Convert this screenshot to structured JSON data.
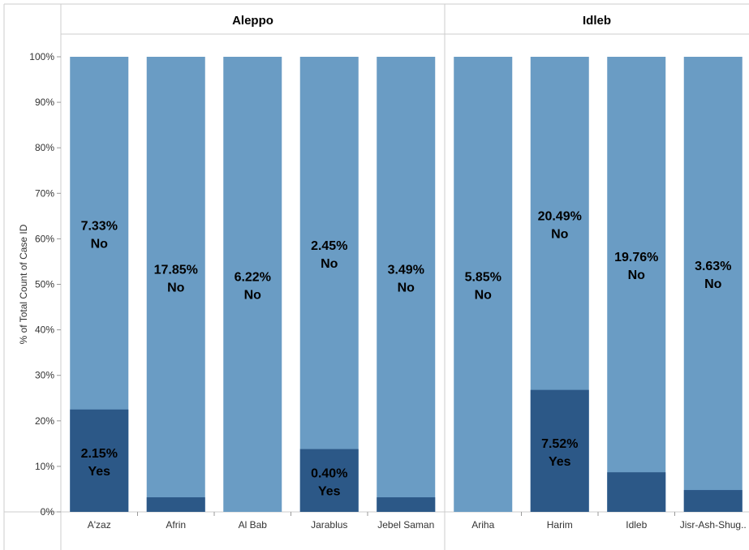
{
  "chart_data": {
    "type": "bar",
    "stacked": true,
    "ylabel": "% of Total Count of Case ID",
    "ylim": [
      0,
      100
    ],
    "yticks": [
      "0%",
      "10%",
      "20%",
      "30%",
      "40%",
      "50%",
      "60%",
      "70%",
      "80%",
      "90%",
      "100%"
    ],
    "colors": {
      "Yes": "#2c5887",
      "No": "#6a9cc4"
    },
    "panes": [
      {
        "title": "Aleppo",
        "bars": [
          {
            "category": "A'zaz",
            "yes_pct": 22.5,
            "yes_label": "2.15%",
            "yes_text": "Yes",
            "no_label": "7.33%",
            "no_text": "No"
          },
          {
            "category": "Afrin",
            "yes_pct": 3.2,
            "yes_label": "",
            "yes_text": "",
            "no_label": "17.85%",
            "no_text": "No"
          },
          {
            "category": "Al Bab",
            "yes_pct": 0,
            "yes_label": "",
            "yes_text": "",
            "no_label": "6.22%",
            "no_text": "No"
          },
          {
            "category": "Jarablus",
            "yes_pct": 13.8,
            "yes_label": "0.40%",
            "yes_text": "Yes",
            "no_label": "2.45%",
            "no_text": "No"
          },
          {
            "category": "Jebel Saman",
            "yes_pct": 3.2,
            "yes_label": "",
            "yes_text": "",
            "no_label": "3.49%",
            "no_text": "No"
          }
        ]
      },
      {
        "title": "Idleb",
        "bars": [
          {
            "category": "Ariha",
            "yes_pct": 0,
            "yes_label": "",
            "yes_text": "",
            "no_label": "5.85%",
            "no_text": "No"
          },
          {
            "category": "Harim",
            "yes_pct": 26.8,
            "yes_label": "7.52%",
            "yes_text": "Yes",
            "no_label": "20.49%",
            "no_text": "No"
          },
          {
            "category": "Idleb",
            "yes_pct": 8.7,
            "yes_label": "",
            "yes_text": "",
            "no_label": "19.76%",
            "no_text": "No"
          },
          {
            "category": "Jisr-Ash-Shug..",
            "yes_pct": 4.8,
            "yes_label": "",
            "yes_text": "",
            "no_label": "3.63%",
            "no_text": "No"
          }
        ]
      }
    ]
  }
}
